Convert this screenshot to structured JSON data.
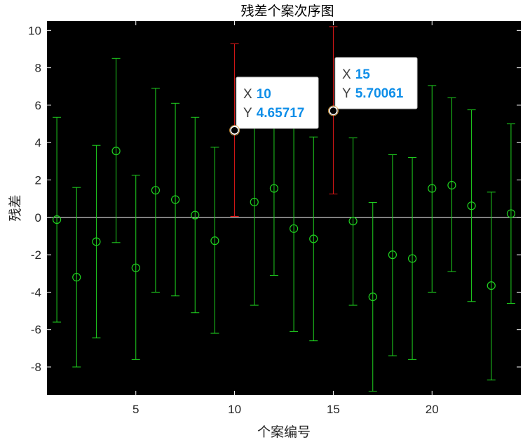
{
  "chart_data": {
    "type": "scatter",
    "title": "残差个案次序图",
    "xlabel": "个案编号",
    "ylabel": "残差",
    "xlim": [
      0.5,
      24.5
    ],
    "ylim": [
      -9.5,
      10.5
    ],
    "xticks": [
      5,
      10,
      15,
      20
    ],
    "yticks": [
      -8,
      -6,
      -4,
      -2,
      0,
      2,
      4,
      6,
      8,
      10
    ],
    "background": "#000000",
    "zero_line_color": "#ffffff",
    "normal_color": "#1fd21f",
    "outlier_color": "#e01818",
    "points": [
      {
        "x": 1,
        "y": -0.12,
        "lower": -5.6,
        "upper": 5.35
      },
      {
        "x": 2,
        "y": -3.2,
        "lower": -8.0,
        "upper": 1.6
      },
      {
        "x": 3,
        "y": -1.3,
        "lower": -6.45,
        "upper": 3.85
      },
      {
        "x": 4,
        "y": 3.55,
        "lower": -1.35,
        "upper": 8.5
      },
      {
        "x": 5,
        "y": -2.7,
        "lower": -7.6,
        "upper": 2.25
      },
      {
        "x": 6,
        "y": 1.45,
        "lower": -4.0,
        "upper": 6.9
      },
      {
        "x": 7,
        "y": 0.95,
        "lower": -4.2,
        "upper": 6.1
      },
      {
        "x": 8,
        "y": 0.12,
        "lower": -5.1,
        "upper": 5.35
      },
      {
        "x": 9,
        "y": -1.25,
        "lower": -6.2,
        "upper": 3.75
      },
      {
        "x": 10,
        "y": 4.65717,
        "lower": 0.05,
        "upper": 9.28,
        "outlier": true
      },
      {
        "x": 11,
        "y": 0.82,
        "lower": -4.7,
        "upper": 6.3
      },
      {
        "x": 12,
        "y": 1.55,
        "lower": -3.1,
        "upper": 6.3
      },
      {
        "x": 13,
        "y": -0.6,
        "lower": -6.1,
        "upper": 4.8
      },
      {
        "x": 14,
        "y": -1.15,
        "lower": -6.6,
        "upper": 4.3
      },
      {
        "x": 15,
        "y": 5.70061,
        "lower": 1.25,
        "upper": 10.2,
        "outlier": true
      },
      {
        "x": 16,
        "y": -0.2,
        "lower": -4.7,
        "upper": 4.25
      },
      {
        "x": 17,
        "y": -4.25,
        "lower": -9.3,
        "upper": 0.8
      },
      {
        "x": 18,
        "y": -2.0,
        "lower": -7.4,
        "upper": 3.35
      },
      {
        "x": 19,
        "y": -2.2,
        "lower": -7.6,
        "upper": 3.2
      },
      {
        "x": 20,
        "y": 1.55,
        "lower": -4.0,
        "upper": 7.05
      },
      {
        "x": 21,
        "y": 1.72,
        "lower": -2.9,
        "upper": 6.4
      },
      {
        "x": 22,
        "y": 0.62,
        "lower": -4.5,
        "upper": 5.75
      },
      {
        "x": 23,
        "y": -3.65,
        "lower": -8.7,
        "upper": 1.35
      },
      {
        "x": 24,
        "y": 0.2,
        "lower": -4.6,
        "upper": 5.0
      }
    ],
    "datatips": [
      {
        "x_key": "X",
        "y_key": "Y",
        "x": "10",
        "y": "4.65717"
      },
      {
        "x_key": "X",
        "y_key": "Y",
        "x": "15",
        "y": "5.70061"
      }
    ]
  }
}
